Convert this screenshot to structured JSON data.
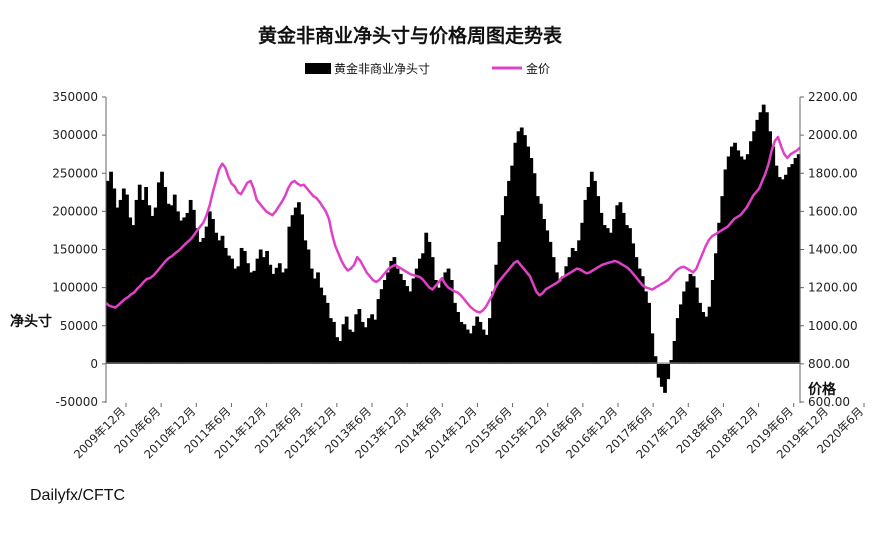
{
  "chart_data": {
    "type": "bar+line",
    "title": "黄金非商业净头寸与价格周图走势表",
    "legend": {
      "position": "top",
      "items": [
        "黄金非商业净头寸",
        "金价"
      ]
    },
    "y_left": {
      "label": "净头寸",
      "range": [
        -50000,
        350000
      ],
      "ticks": [
        "350000",
        "300000",
        "250000",
        "200000",
        "150000",
        "100000",
        "50000",
        "0",
        "-50000"
      ]
    },
    "y_right": {
      "label": "价格",
      "range": [
        600,
        2200
      ],
      "ticks": [
        "2200.00",
        "2000.00",
        "1800.00",
        "1600.00",
        "1400.00",
        "1200.00",
        "1000.00",
        "800.00",
        "600.00"
      ]
    },
    "x_ticks": [
      "2009年12月",
      "2010年6月",
      "2010年12月",
      "2011年6月",
      "2011年12月",
      "2012年6月",
      "2012年12月",
      "2013年6月",
      "2013年12月",
      "2014年6月",
      "2014年12月",
      "2015年6月",
      "2015年12月",
      "2016年6月",
      "2016年12月",
      "2017年6月",
      "2017年12月",
      "2018年6月",
      "2018年12月",
      "2019年6月",
      "2019年12月",
      "2020年6月"
    ],
    "series": [
      {
        "name": "黄金非商业净头寸",
        "type": "bar",
        "color": "#000000",
        "values": [
          240000,
          252000,
          230000,
          205000,
          215000,
          230000,
          222000,
          192000,
          182000,
          215000,
          235000,
          215000,
          232000,
          208000,
          194000,
          205000,
          238000,
          252000,
          232000,
          210000,
          208000,
          222000,
          200000,
          188000,
          192000,
          198000,
          215000,
          202000,
          178000,
          160000,
          165000,
          180000,
          200000,
          190000,
          172000,
          162000,
          168000,
          152000,
          142000,
          138000,
          125000,
          128000,
          152000,
          148000,
          132000,
          120000,
          122000,
          138000,
          150000,
          140000,
          148000,
          130000,
          118000,
          126000,
          132000,
          120000,
          125000,
          180000,
          195000,
          205000,
          212000,
          196000,
          162000,
          150000,
          125000,
          112000,
          120000,
          100000,
          90000,
          80000,
          60000,
          55000,
          35000,
          30000,
          52000,
          62000,
          45000,
          42000,
          65000,
          72000,
          55000,
          48000,
          60000,
          65000,
          58000,
          85000,
          98000,
          110000,
          120000,
          135000,
          140000,
          125000,
          118000,
          110000,
          102000,
          95000,
          112000,
          125000,
          138000,
          145000,
          172000,
          160000,
          140000,
          110000,
          100000,
          110000,
          120000,
          125000,
          110000,
          80000,
          68000,
          55000,
          52000,
          45000,
          40000,
          50000,
          62000,
          55000,
          45000,
          38000,
          60000,
          95000,
          130000,
          160000,
          195000,
          220000,
          240000,
          260000,
          290000,
          305000,
          310000,
          300000,
          285000,
          270000,
          250000,
          220000,
          210000,
          190000,
          175000,
          160000,
          140000,
          120000,
          108000,
          115000,
          128000,
          140000,
          152000,
          148000,
          162000,
          185000,
          215000,
          232000,
          252000,
          240000,
          220000,
          198000,
          182000,
          178000,
          172000,
          190000,
          208000,
          212000,
          198000,
          182000,
          178000,
          158000,
          140000,
          125000,
          115000,
          95000,
          80000,
          40000,
          10000,
          -18000,
          -30000,
          -38000,
          -20000,
          5000,
          30000,
          60000,
          78000,
          95000,
          108000,
          118000,
          115000,
          100000,
          80000,
          68000,
          62000,
          75000,
          110000,
          145000,
          185000,
          220000,
          255000,
          272000,
          285000,
          290000,
          280000,
          272000,
          268000,
          275000,
          292000,
          305000,
          320000,
          330000,
          340000,
          330000,
          305000,
          285000,
          260000,
          245000,
          242000,
          248000,
          258000,
          262000,
          270000,
          275000
        ]
      },
      {
        "name": "金价",
        "type": "line",
        "color": "#e040c8",
        "values": [
          1120,
          1105,
          1100,
          1095,
          1110,
          1125,
          1140,
          1150,
          1165,
          1175,
          1195,
          1210,
          1230,
          1245,
          1250,
          1262,
          1280,
          1300,
          1320,
          1340,
          1355,
          1365,
          1380,
          1392,
          1408,
          1425,
          1440,
          1455,
          1475,
          1500,
          1520,
          1540,
          1580,
          1630,
          1700,
          1760,
          1820,
          1850,
          1830,
          1780,
          1745,
          1730,
          1700,
          1690,
          1720,
          1750,
          1760,
          1720,
          1660,
          1640,
          1620,
          1600,
          1590,
          1580,
          1600,
          1625,
          1650,
          1680,
          1720,
          1750,
          1760,
          1745,
          1735,
          1740,
          1720,
          1700,
          1680,
          1670,
          1650,
          1625,
          1600,
          1560,
          1480,
          1420,
          1380,
          1340,
          1310,
          1290,
          1300,
          1320,
          1360,
          1340,
          1310,
          1280,
          1260,
          1240,
          1230,
          1240,
          1260,
          1280,
          1300,
          1310,
          1320,
          1310,
          1300,
          1290,
          1280,
          1270,
          1265,
          1260,
          1255,
          1240,
          1220,
          1200,
          1190,
          1210,
          1230,
          1250,
          1220,
          1200,
          1190,
          1180,
          1175,
          1160,
          1140,
          1120,
          1100,
          1085,
          1075,
          1070,
          1080,
          1100,
          1130,
          1160,
          1200,
          1230,
          1250,
          1270,
          1290,
          1310,
          1330,
          1340,
          1320,
          1300,
          1280,
          1260,
          1220,
          1180,
          1160,
          1170,
          1190,
          1200,
          1210,
          1220,
          1230,
          1250,
          1260,
          1270,
          1280,
          1290,
          1300,
          1295,
          1285,
          1275,
          1280,
          1290,
          1300,
          1310,
          1320,
          1325,
          1330,
          1335,
          1340,
          1335,
          1325,
          1315,
          1305,
          1290,
          1270,
          1250,
          1230,
          1210,
          1200,
          1195,
          1190,
          1200,
          1210,
          1220,
          1230,
          1240,
          1260,
          1280,
          1295,
          1305,
          1310,
          1300,
          1290,
          1280,
          1300,
          1340,
          1380,
          1420,
          1450,
          1470,
          1480,
          1490,
          1500,
          1510,
          1520,
          1540,
          1560,
          1570,
          1580,
          1600,
          1620,
          1650,
          1680,
          1700,
          1720,
          1760,
          1800,
          1850,
          1920,
          1970,
          1990,
          1940,
          1900,
          1880,
          1900,
          1910,
          1920,
          1935
        ]
      }
    ],
    "source": "Dailyfx/CFTC"
  }
}
